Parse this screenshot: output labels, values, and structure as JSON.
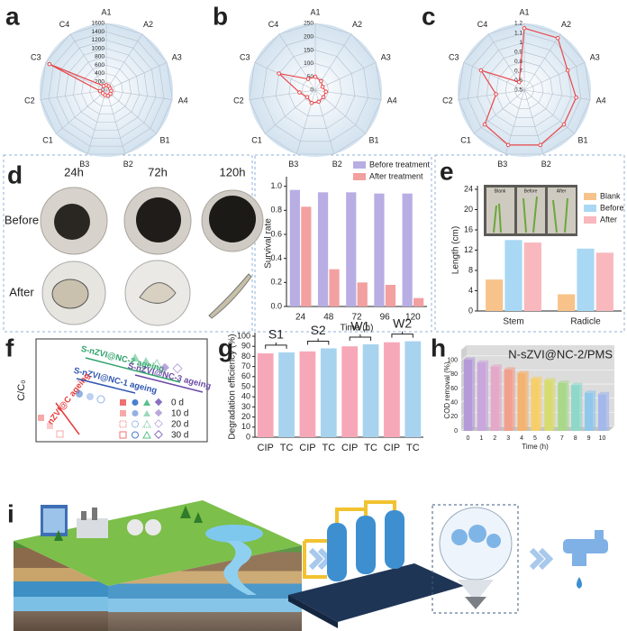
{
  "panel_labels": [
    "a",
    "b",
    "c",
    "d",
    "e",
    "f",
    "g",
    "h",
    "i"
  ],
  "d_photos": {
    "times": [
      "24h",
      "72h",
      "120h"
    ],
    "rows": [
      "Before",
      "After"
    ]
  },
  "e_inset": {
    "labels": [
      "Blank",
      "Before",
      "After"
    ]
  },
  "f_scheme": {
    "y_label": "C/C₀",
    "lines": [
      "S-nZVI@NC-2 ageing",
      "S-nZVI@NC-3 ageing",
      "S-nZVI@NC-1 ageing",
      "nZVI@C ageing"
    ],
    "legend": [
      "0 d",
      "10 d",
      "20 d",
      "30 d"
    ]
  },
  "chart_data": [
    {
      "type": "radar",
      "categories": [
        "A1",
        "A2",
        "A3",
        "A4",
        "B1",
        "B2",
        "B3",
        "C1",
        "C2",
        "C3",
        "C4"
      ],
      "values": [
        120,
        110,
        100,
        120,
        130,
        140,
        120,
        110,
        150,
        1500,
        120
      ],
      "color": "#e8474b",
      "ylim": [
        0,
        1600
      ],
      "yticks": [
        0,
        200,
        400,
        600,
        800,
        1000,
        1200,
        1400,
        1600
      ]
    },
    {
      "type": "radar",
      "categories": [
        "A1",
        "A2",
        "A3",
        "A4",
        "B1",
        "B2",
        "B3",
        "C1",
        "C2",
        "C3",
        "C4"
      ],
      "values": [
        50,
        40,
        30,
        40,
        40,
        45,
        50,
        40,
        60,
        150,
        50
      ],
      "color": "#e8474b",
      "ylim": [
        0,
        250
      ],
      "yticks": [
        0,
        50,
        100,
        150,
        200,
        250
      ]
    },
    {
      "type": "radar",
      "categories": [
        "A1",
        "A2",
        "A3",
        "A4",
        "B1",
        "B2",
        "B3",
        "C1",
        "C2",
        "C3",
        "C4"
      ],
      "values": [
        1.15,
        1.15,
        1.0,
        1.05,
        1.05,
        1.1,
        1.1,
        1.05,
        0.8,
        1.0,
        0.6
      ],
      "color": "#e8474b",
      "ylim": [
        0.5,
        1.2
      ],
      "yticks": [
        0.5,
        0.6,
        0.7,
        0.8,
        0.9,
        1.0,
        1.1,
        1.2
      ]
    },
    {
      "type": "bar",
      "categories": [
        "24",
        "48",
        "72",
        "96",
        "120"
      ],
      "series": [
        {
          "name": "Before treatment",
          "color": "#b8aee3",
          "values": [
            0.97,
            0.95,
            0.95,
            0.94,
            0.94
          ]
        },
        {
          "name": "After treatment",
          "color": "#f2a0a0",
          "values": [
            0.83,
            0.31,
            0.2,
            0.18,
            0.07
          ]
        }
      ],
      "x_label": "Time (h)",
      "y_label": "Survival rate",
      "ylim": [
        0,
        1.05
      ],
      "yticks": [
        {
          "value": 0,
          "label": "0.0"
        },
        0.2,
        0.4,
        0.6,
        0.8,
        {
          "value": 1,
          "label": "1.0"
        }
      ]
    },
    {
      "type": "bar",
      "categories": [
        "Stem",
        "Radicle"
      ],
      "series": [
        {
          "name": "Blank",
          "color": "#f7c38a",
          "values": [
            6.2,
            3.3
          ]
        },
        {
          "name": "Before",
          "color": "#a8d8f3",
          "values": [
            14,
            12.3
          ]
        },
        {
          "name": "After",
          "color": "#f9b8bd",
          "values": [
            13.5,
            11.5
          ]
        }
      ],
      "y_label": "Length (cm)",
      "ylim": [
        0,
        24
      ],
      "yticks": [
        0,
        4,
        8,
        12,
        16,
        20,
        24
      ]
    },
    {
      "type": "bar",
      "categories": [
        "CIP",
        "TC",
        "CIP",
        "TC",
        "CIP",
        "TC",
        "CIP",
        "TC"
      ],
      "values": [
        83,
        84,
        85,
        88,
        90,
        92,
        94,
        95
      ],
      "colors": [
        "#f7a8b8",
        "#a8d3ef"
      ],
      "groups": [
        "S1",
        "S2",
        "W1",
        "W2"
      ],
      "y_label": "Degradation efficiency (%)",
      "ylim": [
        0,
        100
      ],
      "yticks": [
        0,
        10,
        20,
        30,
        40,
        50,
        60,
        70,
        80,
        90,
        100
      ]
    },
    {
      "type": "bar3d",
      "title": "N-sZVI@NC-2/PMS",
      "x": [
        0,
        1,
        2,
        3,
        4,
        5,
        6,
        7,
        8,
        9,
        10
      ],
      "values": [
        101,
        97,
        91,
        87,
        82,
        74,
        72,
        68,
        65,
        54,
        52
      ],
      "colors": [
        "#b49ad8",
        "#c9a6dc",
        "#e4a8c8",
        "#f2a08e",
        "#f4b36f",
        "#f6cf6a",
        "#d8dc70",
        "#a8d98a",
        "#8ed8c8",
        "#90c8ec",
        "#a4b8ec"
      ],
      "x_label": "Time (h)",
      "y_label": "COD removal (%)",
      "ylim": [
        0,
        115
      ],
      "yticks": [
        0,
        20,
        40,
        60,
        80,
        100
      ]
    }
  ]
}
